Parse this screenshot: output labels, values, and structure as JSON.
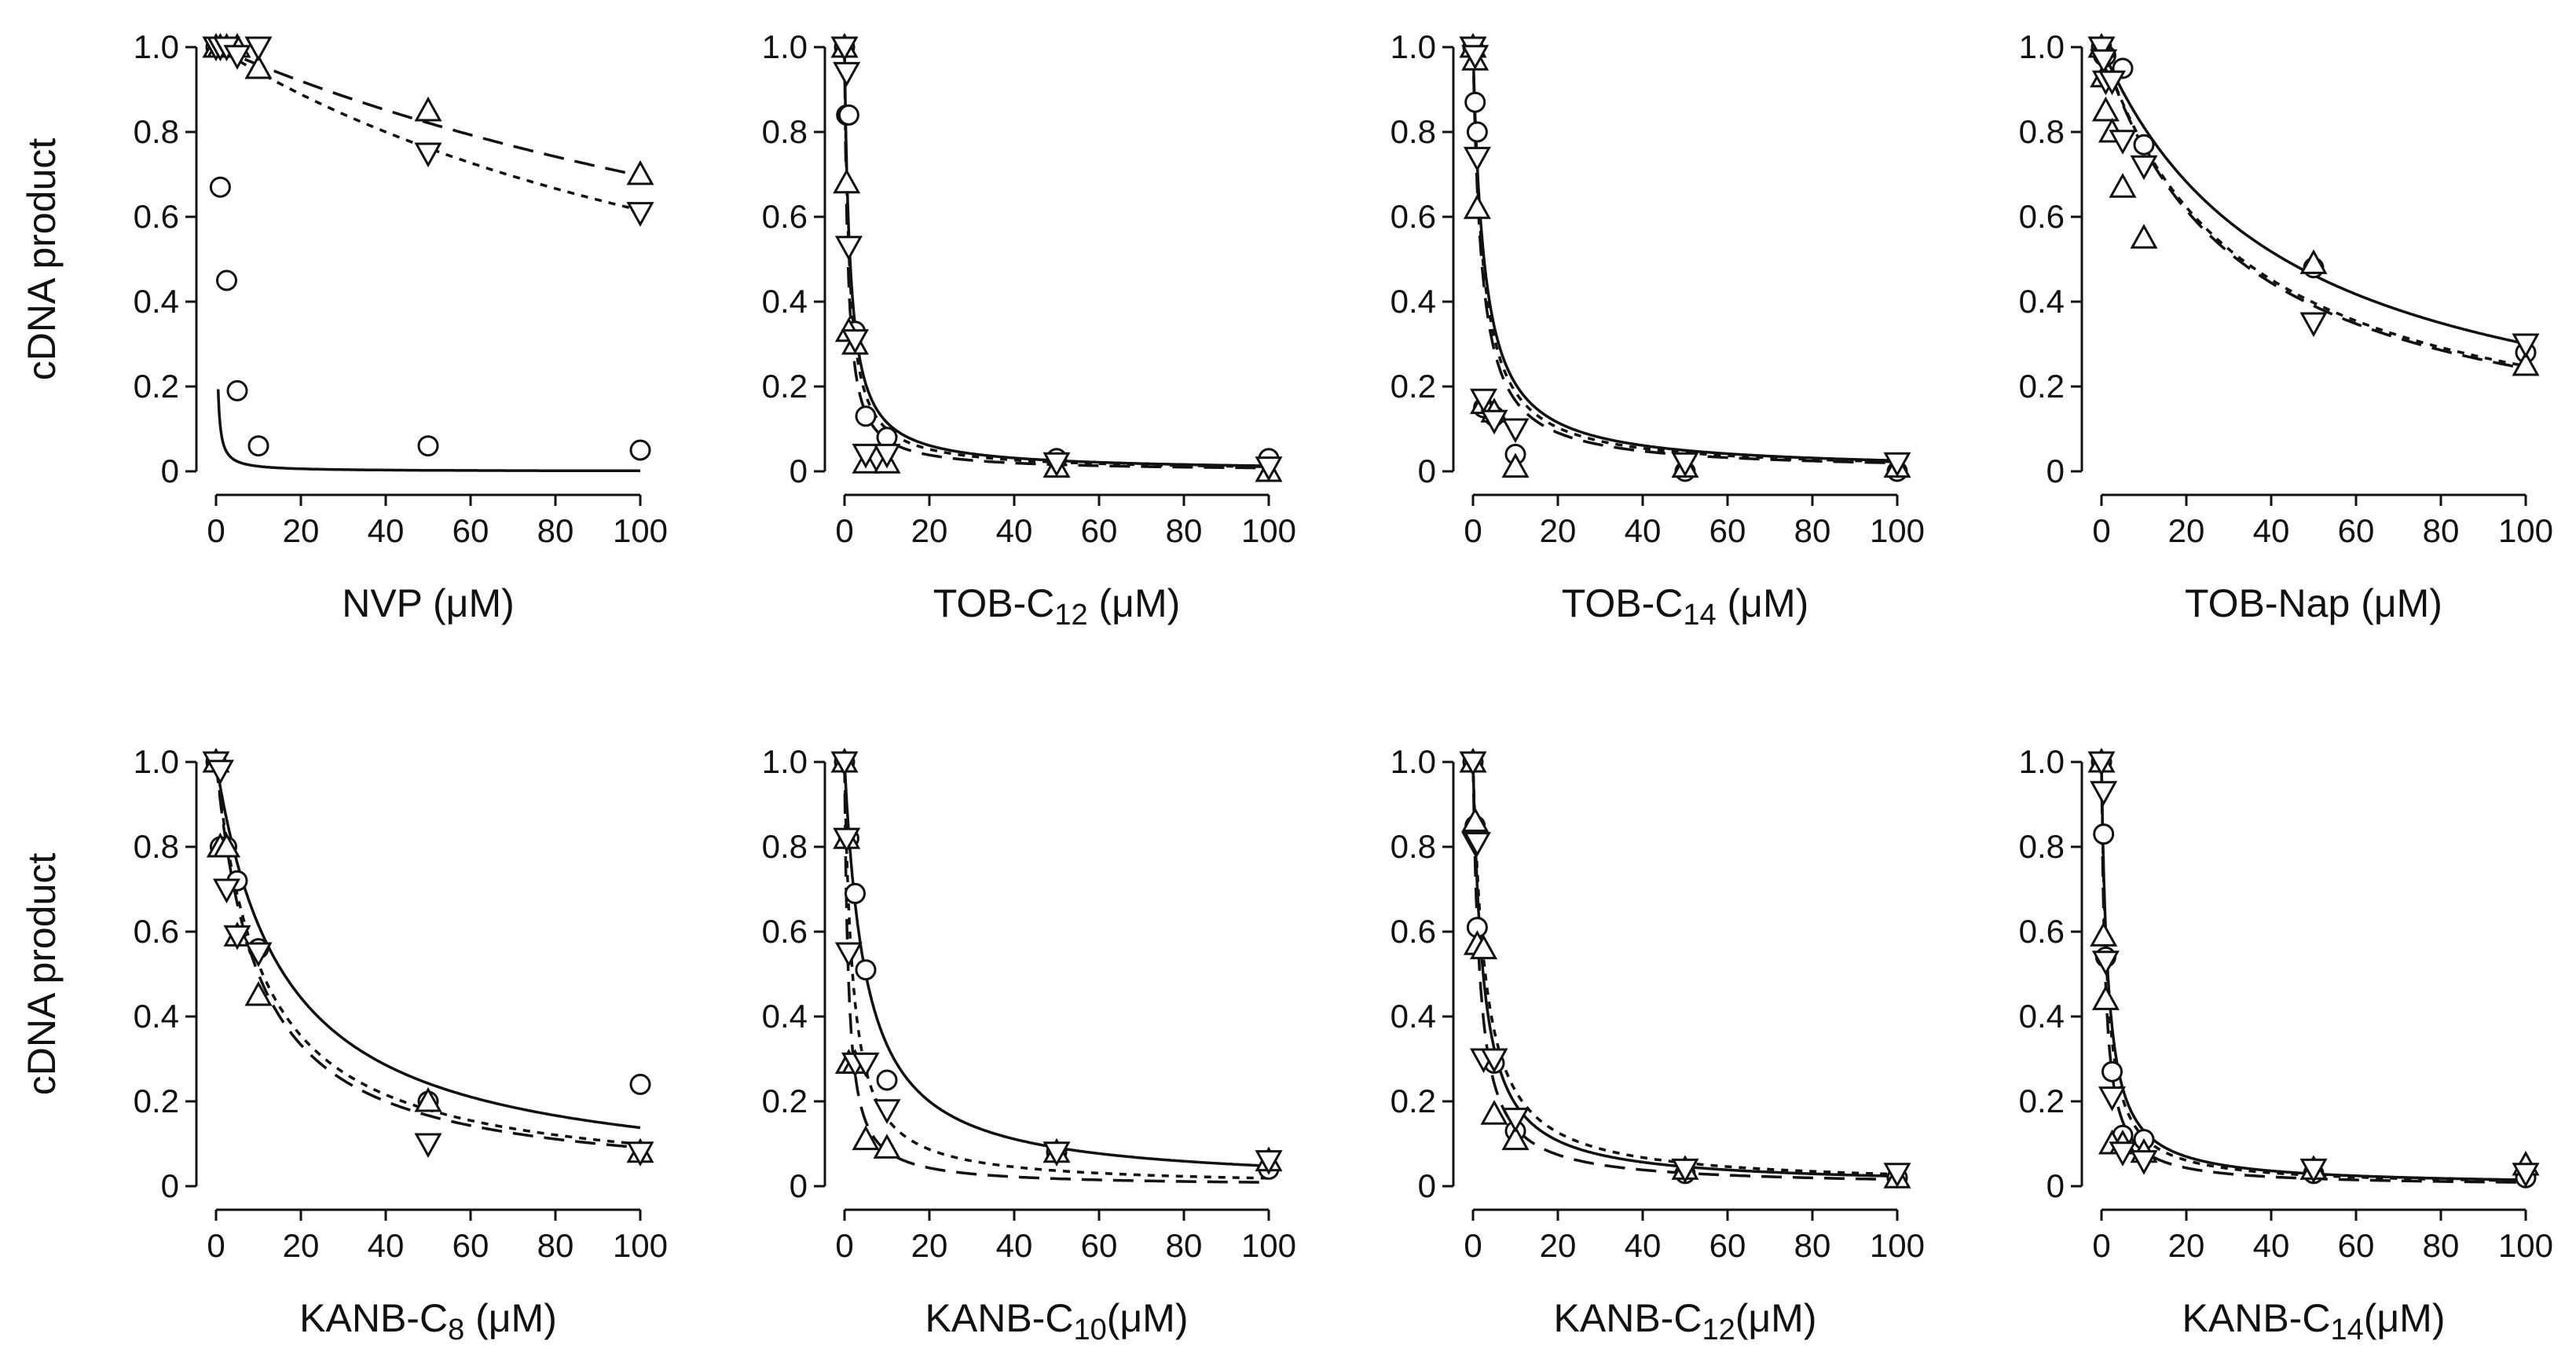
{
  "figure": {
    "ylabel": "cDNA product",
    "x_ticks": [
      "0",
      "20",
      "40",
      "60",
      "80",
      "100"
    ],
    "y_ticks": [
      "0",
      "0.2",
      "0.4",
      "0.6",
      "0.8",
      "1.0"
    ]
  },
  "chart_data": [
    {
      "type": "scatter",
      "title": "",
      "xlabel": "NVP (μM)",
      "xlabel_parts": {
        "main": "NVP",
        "sub": "",
        "unit": " (μM)"
      },
      "ylabel": "cDNA product",
      "xlim": [
        0,
        100
      ],
      "ylim": [
        0,
        1.0
      ],
      "series": [
        {
          "name": "circle",
          "marker": "circle",
          "line": "solid",
          "x": [
            0,
            1,
            2.5,
            5,
            10,
            50,
            100
          ],
          "y": [
            1.0,
            0.67,
            0.45,
            0.19,
            0.06,
            0.06,
            0.05
          ],
          "fit_ic50": 0.12,
          "fit_start": 0.5
        },
        {
          "name": "triangle-up",
          "marker": "triangle-up",
          "line": "dashed",
          "x": [
            0,
            1,
            2.5,
            5,
            10,
            50,
            100
          ],
          "y": [
            1.0,
            1.0,
            1.0,
            1.0,
            0.95,
            0.85,
            0.7
          ],
          "fit_ic50": 230,
          "fit_start": 0
        },
        {
          "name": "triangle-down",
          "marker": "triangle-down",
          "line": "dotted",
          "x": [
            0,
            1,
            2.5,
            5,
            10,
            50,
            100
          ],
          "y": [
            1.0,
            1.0,
            1.0,
            0.98,
            1.0,
            0.75,
            0.61
          ],
          "fit_ic50": 160,
          "fit_start": 0
        }
      ]
    },
    {
      "type": "scatter",
      "title": "",
      "xlabel": "TOB-C12 (μM)",
      "xlabel_parts": {
        "main": "TOB-C",
        "sub": "12",
        "unit": " (μM)"
      },
      "ylabel": "",
      "xlim": [
        0,
        100
      ],
      "ylim": [
        0,
        1.0
      ],
      "series": [
        {
          "name": "circle",
          "marker": "circle",
          "line": "solid",
          "x": [
            0,
            0.5,
            1,
            2.5,
            5,
            10,
            50,
            100
          ],
          "y": [
            1.0,
            0.84,
            0.84,
            0.33,
            0.13,
            0.08,
            0.03,
            0.03
          ],
          "fit_ic50": 1.3,
          "fit_start": 0
        },
        {
          "name": "triangle-up",
          "marker": "triangle-up",
          "line": "dashed",
          "x": [
            0,
            0.5,
            1,
            2.5,
            5,
            10,
            50,
            100
          ],
          "y": [
            1.0,
            0.68,
            0.33,
            0.3,
            0.02,
            0.02,
            0.01,
            0.0
          ],
          "fit_ic50": 0.8,
          "fit_start": 0
        },
        {
          "name": "triangle-down",
          "marker": "triangle-down",
          "line": "dotted",
          "x": [
            0,
            0.5,
            1,
            2.5,
            5,
            10,
            50,
            100
          ],
          "y": [
            1.0,
            0.94,
            0.53,
            0.31,
            0.04,
            0.04,
            0.02,
            0.01
          ],
          "fit_ic50": 1.1,
          "fit_start": 0
        }
      ]
    },
    {
      "type": "scatter",
      "title": "",
      "xlabel": "TOB-C14 (μM)",
      "xlabel_parts": {
        "main": "TOB-C",
        "sub": "14",
        "unit": " (μM)"
      },
      "ylabel": "",
      "xlim": [
        0,
        100
      ],
      "ylim": [
        0,
        1.0
      ],
      "series": [
        {
          "name": "circle",
          "marker": "circle",
          "line": "solid",
          "x": [
            0,
            0.5,
            1,
            2.5,
            5,
            10,
            50,
            100
          ],
          "y": [
            1.0,
            0.87,
            0.8,
            0.15,
            0.13,
            0.04,
            0.0,
            0.0
          ],
          "fit_ic50": 2.6,
          "fit_start": 0
        },
        {
          "name": "triangle-up",
          "marker": "triangle-up",
          "line": "dashed",
          "x": [
            0,
            0.5,
            1,
            2.5,
            5,
            10,
            50,
            100
          ],
          "y": [
            1.0,
            0.97,
            0.62,
            0.16,
            0.14,
            0.01,
            0.01,
            0.01
          ],
          "fit_ic50": 2.0,
          "fit_start": 0
        },
        {
          "name": "triangle-down",
          "marker": "triangle-down",
          "line": "dotted",
          "x": [
            0,
            0.5,
            1,
            2.5,
            5,
            10,
            50,
            100
          ],
          "y": [
            1.0,
            0.98,
            0.74,
            0.17,
            0.12,
            0.1,
            0.02,
            0.02
          ],
          "fit_ic50": 2.3,
          "fit_start": 0
        }
      ]
    },
    {
      "type": "scatter",
      "title": "",
      "xlabel": "TOB-Nap (μM)",
      "xlabel_parts": {
        "main": "TOB-Nap",
        "sub": "",
        "unit": " (μM)"
      },
      "ylabel": "",
      "xlim": [
        0,
        100
      ],
      "ylim": [
        0,
        1.0
      ],
      "series": [
        {
          "name": "circle",
          "marker": "circle",
          "line": "solid",
          "x": [
            0,
            0.5,
            1,
            5,
            10,
            50,
            100
          ],
          "y": [
            1.0,
            0.98,
            0.98,
            0.95,
            0.77,
            0.48,
            0.28
          ],
          "fit_ic50": 43,
          "fit_start": 0
        },
        {
          "name": "triangle-up",
          "marker": "triangle-up",
          "line": "dashed",
          "x": [
            0,
            0.5,
            1,
            2.5,
            5,
            10,
            50,
            100
          ],
          "y": [
            1.0,
            0.93,
            0.85,
            0.8,
            0.67,
            0.55,
            0.49,
            0.25
          ],
          "fit_ic50": 32,
          "fit_start": 0
        },
        {
          "name": "triangle-down",
          "marker": "triangle-down",
          "line": "dotted",
          "x": [
            0,
            0.5,
            1,
            2.5,
            5,
            10,
            50,
            100
          ],
          "y": [
            1.0,
            0.97,
            0.92,
            0.92,
            0.78,
            0.72,
            0.35,
            0.3
          ],
          "fit_ic50": 33,
          "fit_start": 0
        }
      ]
    },
    {
      "type": "scatter",
      "title": "",
      "xlabel": "KANB-C8 (μM)",
      "xlabel_parts": {
        "main": "KANB-C",
        "sub": "8",
        "unit": " (μM)"
      },
      "ylabel": "cDNA product",
      "xlim": [
        0,
        100
      ],
      "ylim": [
        0,
        1.0
      ],
      "series": [
        {
          "name": "circle",
          "marker": "circle",
          "line": "solid",
          "x": [
            0,
            1,
            2.5,
            5,
            10,
            50,
            100
          ],
          "y": [
            1.0,
            0.8,
            0.8,
            0.72,
            0.56,
            0.2,
            0.24
          ],
          "fit_ic50": 16,
          "fit_start": 0
        },
        {
          "name": "triangle-up",
          "marker": "triangle-up",
          "line": "dashed",
          "x": [
            0,
            1,
            2.5,
            5,
            10,
            50,
            100
          ],
          "y": [
            1.0,
            0.8,
            0.8,
            0.59,
            0.45,
            0.2,
            0.08
          ],
          "fit_ic50": 10,
          "fit_start": 0
        },
        {
          "name": "triangle-down",
          "marker": "triangle-down",
          "line": "dotted",
          "x": [
            0,
            1,
            2.5,
            5,
            10,
            50,
            100
          ],
          "y": [
            1.0,
            0.98,
            0.7,
            0.59,
            0.55,
            0.1,
            0.08
          ],
          "fit_ic50": 11,
          "fit_start": 0
        }
      ]
    },
    {
      "type": "scatter",
      "title": "",
      "xlabel": "KANB-C10(μM)",
      "xlabel_parts": {
        "main": "KANB-C",
        "sub": "10",
        "unit": "(μM)"
      },
      "ylabel": "",
      "xlim": [
        0,
        100
      ],
      "ylim": [
        0,
        1.0
      ],
      "series": [
        {
          "name": "circle",
          "marker": "circle",
          "line": "solid",
          "x": [
            0,
            1,
            2.5,
            5,
            10,
            50,
            100
          ],
          "y": [
            1.0,
            0.82,
            0.69,
            0.51,
            0.25,
            0.08,
            0.04
          ],
          "fit_ic50": 5.0,
          "fit_start": 0
        },
        {
          "name": "triangle-up",
          "marker": "triangle-up",
          "line": "dashed",
          "x": [
            0,
            0.5,
            1,
            2.5,
            5,
            10,
            50,
            100
          ],
          "y": [
            1.0,
            0.82,
            0.29,
            0.29,
            0.11,
            0.09,
            0.08,
            0.06
          ],
          "fit_ic50": 0.9,
          "fit_start": 0
        },
        {
          "name": "triangle-down",
          "marker": "triangle-down",
          "line": "dotted",
          "x": [
            0,
            0.5,
            1,
            2.5,
            5,
            10,
            50,
            100
          ],
          "y": [
            1.0,
            0.82,
            0.55,
            0.29,
            0.29,
            0.18,
            0.08,
            0.06
          ],
          "fit_ic50": 1.9,
          "fit_start": 0
        }
      ]
    },
    {
      "type": "scatter",
      "title": "",
      "xlabel": "KANB-C12(μM)",
      "xlabel_parts": {
        "main": "KANB-C",
        "sub": "12",
        "unit": "(μM)"
      },
      "ylabel": "",
      "xlim": [
        0,
        100
      ],
      "ylim": [
        0,
        1.0
      ],
      "series": [
        {
          "name": "circle",
          "marker": "circle",
          "line": "solid",
          "x": [
            0,
            0.5,
            1,
            5,
            10,
            50,
            100
          ],
          "y": [
            1.0,
            0.85,
            0.61,
            0.29,
            0.13,
            0.03,
            0.02
          ],
          "fit_ic50": 2.4,
          "fit_start": 0
        },
        {
          "name": "triangle-up",
          "marker": "triangle-up",
          "line": "dashed",
          "x": [
            0,
            0.5,
            1,
            2.5,
            5,
            10,
            50,
            100
          ],
          "y": [
            1.0,
            0.86,
            0.57,
            0.56,
            0.17,
            0.11,
            0.04,
            0.02
          ],
          "fit_ic50": 1.6,
          "fit_start": 0
        },
        {
          "name": "triangle-down",
          "marker": "triangle-down",
          "line": "dotted",
          "x": [
            0,
            0.5,
            1,
            2.5,
            5,
            10,
            50,
            100
          ],
          "y": [
            1.0,
            0.81,
            0.81,
            0.3,
            0.3,
            0.16,
            0.04,
            0.03
          ],
          "fit_ic50": 2.9,
          "fit_start": 0
        }
      ]
    },
    {
      "type": "scatter",
      "title": "",
      "xlabel": "KANB-C14(μM)",
      "xlabel_parts": {
        "main": "KANB-C",
        "sub": "14",
        "unit": "(μM)"
      },
      "ylabel": "",
      "xlim": [
        0,
        100
      ],
      "ylim": [
        0,
        1.0
      ],
      "series": [
        {
          "name": "circle",
          "marker": "circle",
          "line": "solid",
          "x": [
            0,
            0.5,
            1,
            2.5,
            5,
            10,
            50,
            100
          ],
          "y": [
            1.0,
            0.83,
            0.54,
            0.27,
            0.12,
            0.11,
            0.03,
            0.02
          ],
          "fit_ic50": 1.5,
          "fit_start": 0
        },
        {
          "name": "triangle-up",
          "marker": "triangle-up",
          "line": "dashed",
          "x": [
            0,
            0.5,
            1,
            2.5,
            5,
            10,
            50,
            100
          ],
          "y": [
            1.0,
            0.59,
            0.44,
            0.1,
            0.1,
            0.08,
            0.04,
            0.05
          ],
          "fit_ic50": 0.9,
          "fit_start": 0
        },
        {
          "name": "triangle-down",
          "marker": "triangle-down",
          "line": "dotted",
          "x": [
            0,
            0.5,
            1,
            2.5,
            5,
            10,
            50,
            100
          ],
          "y": [
            1.0,
            0.93,
            0.53,
            0.21,
            0.08,
            0.06,
            0.04,
            0.03
          ],
          "fit_ic50": 1.3,
          "fit_start": 0
        }
      ]
    }
  ]
}
